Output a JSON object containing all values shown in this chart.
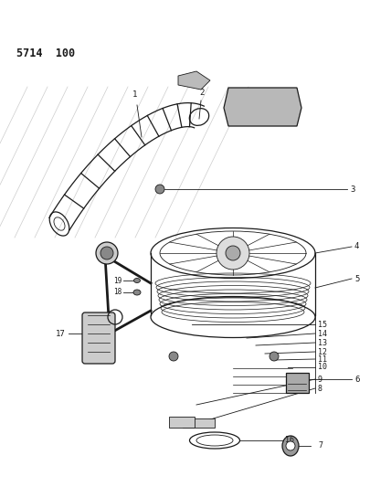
{
  "title_code": "5714  100",
  "bg": "#ffffff",
  "lc": "#1a1a1a",
  "figsize": [
    4.28,
    5.33
  ],
  "dpi": 100
}
